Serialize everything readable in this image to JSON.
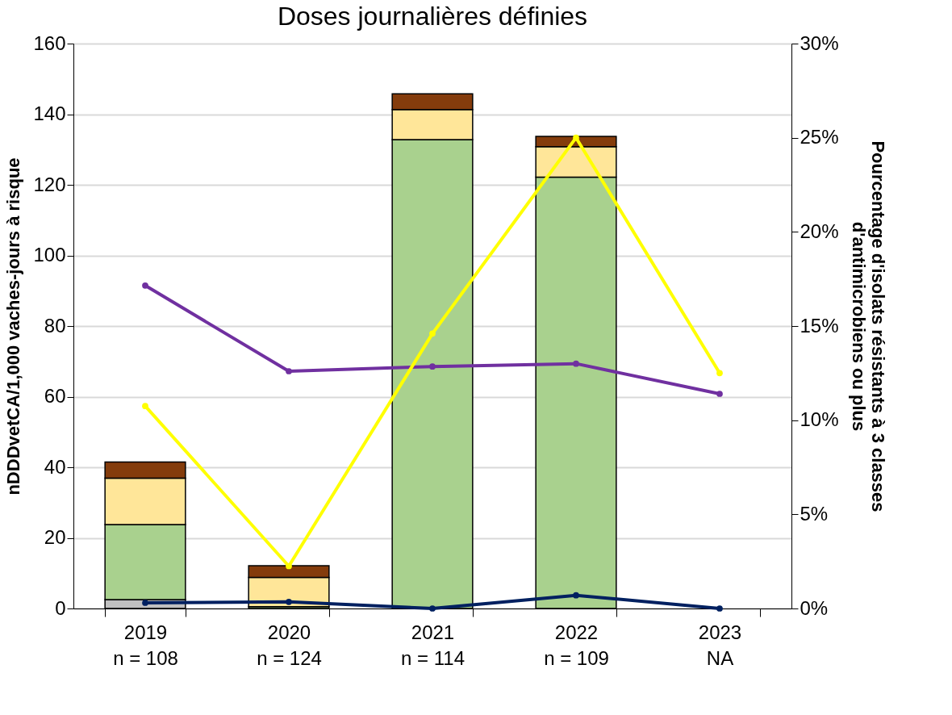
{
  "chart_data": {
    "type": "bar",
    "title": "Doses journalières définies",
    "ylabel": "nDDDvetCA/1,000 vaches-jours à risque",
    "y2label": "Pourcentage d'isolats résistants à 3 classes\nd'antimicrobiens ou plus",
    "categories": [
      "2019\nn = 108",
      "2020\nn = 124",
      "2021\nn = 114",
      "2022\nn = 109",
      "2023\nNA"
    ],
    "stacked": true,
    "ylim": [
      0,
      160
    ],
    "yticks": [
      0,
      20,
      40,
      60,
      80,
      100,
      120,
      140,
      160
    ],
    "y2lim": [
      0,
      30
    ],
    "y2ticks": [
      {
        "value": 0,
        "label": "0%"
      },
      {
        "value": 5,
        "label": "5%"
      },
      {
        "value": 10,
        "label": "10%"
      },
      {
        "value": 15,
        "label": "15%"
      },
      {
        "value": 20,
        "label": "20%"
      },
      {
        "value": 25,
        "label": "25%"
      },
      {
        "value": 30,
        "label": "30%"
      }
    ],
    "grid": "y",
    "marker": "circle",
    "line_style": "solid",
    "series": [
      {
        "color": "#c0c0c0",
        "values": [
          2.5,
          0,
          0,
          0,
          null
        ]
      },
      {
        "color": "#a9d18e",
        "values": [
          21.3,
          0.5,
          132.8,
          122.2,
          null
        ]
      },
      {
        "color": "#ffe699",
        "values": [
          13.1,
          8.3,
          8.5,
          8.6,
          null
        ]
      },
      {
        "color": "#843c0c",
        "values": [
          4.6,
          3.3,
          4.5,
          2.9,
          null
        ]
      },
      {
        "type": "line",
        "axis": "y2",
        "color": "#7030a0",
        "values": [
          17.15,
          12.6,
          12.85,
          13.0,
          11.4
        ]
      },
      {
        "type": "line",
        "axis": "y2",
        "color": "#ffff00",
        "values": [
          10.75,
          2.25,
          14.6,
          25.0,
          12.5
        ]
      },
      {
        "type": "line",
        "axis": "y2",
        "color": "#002060",
        "values": [
          0.3,
          0.35,
          0,
          0.7,
          0
        ]
      }
    ]
  }
}
